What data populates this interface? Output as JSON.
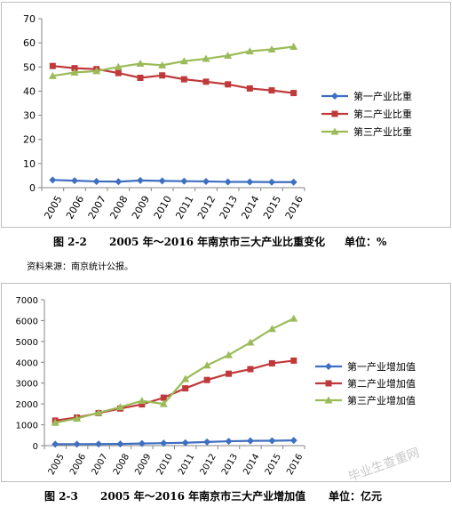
{
  "chart_data": [
    {
      "type": "line",
      "categories": [
        "2005",
        "2006",
        "2007",
        "2008",
        "2009",
        "2010",
        "2011",
        "2012",
        "2013",
        "2014",
        "2015",
        "2016"
      ],
      "series": [
        {
          "name": "第一产业比重",
          "color": "#3e6fc1",
          "marker": "diamond",
          "values": [
            3.2,
            2.9,
            2.6,
            2.5,
            3.0,
            2.8,
            2.7,
            2.6,
            2.4,
            2.4,
            2.3,
            2.3
          ]
        },
        {
          "name": "第二产业比重",
          "color": "#c0393a",
          "marker": "square",
          "values": [
            50.4,
            49.5,
            49.1,
            47.5,
            45.5,
            46.5,
            44.9,
            43.9,
            42.8,
            41.1,
            40.3,
            39.2
          ]
        },
        {
          "name": "第三产业比重",
          "color": "#9bbb59",
          "marker": "triangle",
          "values": [
            46.3,
            47.7,
            48.3,
            50.0,
            51.4,
            50.7,
            52.4,
            53.4,
            54.7,
            56.5,
            57.3,
            58.4
          ]
        }
      ],
      "ylim": [
        0,
        70
      ],
      "yticks": [
        0,
        10,
        20,
        30,
        40,
        50,
        60,
        70
      ],
      "grid": false,
      "legend": "right"
    },
    {
      "type": "line",
      "categories": [
        "2005",
        "2006",
        "2007",
        "2008",
        "2009",
        "2010",
        "2011",
        "2012",
        "2013",
        "2014",
        "2015",
        "2016"
      ],
      "series": [
        {
          "name": "第一产业增加值",
          "color": "#3e6fc1",
          "marker": "diamond",
          "values": [
            68,
            72,
            76,
            80,
            100,
            120,
            140,
            175,
            210,
            230,
            235,
            250
          ]
        },
        {
          "name": "第二产业增加值",
          "color": "#c0393a",
          "marker": "square",
          "values": [
            1200,
            1350,
            1560,
            1780,
            1980,
            2300,
            2750,
            3150,
            3450,
            3670,
            3950,
            4080
          ]
        },
        {
          "name": "第三产业增加值",
          "color": "#9bbb59",
          "marker": "triangle",
          "values": [
            1100,
            1300,
            1580,
            1850,
            2150,
            2000,
            3200,
            3850,
            4350,
            4950,
            5600,
            6100
          ]
        }
      ],
      "ylim": [
        0,
        7000
      ],
      "yticks": [
        0,
        1000,
        2000,
        3000,
        4000,
        5000,
        6000,
        7000
      ],
      "grid": false,
      "legend": "right"
    }
  ],
  "captions": {
    "fig1_num": "图 2-2",
    "fig1_title": "2005 年～2016 年南京市三大产业比重变化",
    "fig1_unit": "单位：%",
    "source": "资料来源：南京统计公报。",
    "fig2_num": "图 2-3",
    "fig2_title": "2005 年～2016 年南京市三大产业增加值",
    "fig2_unit": "单位：亿元"
  },
  "watermark": "毕业生查重网"
}
